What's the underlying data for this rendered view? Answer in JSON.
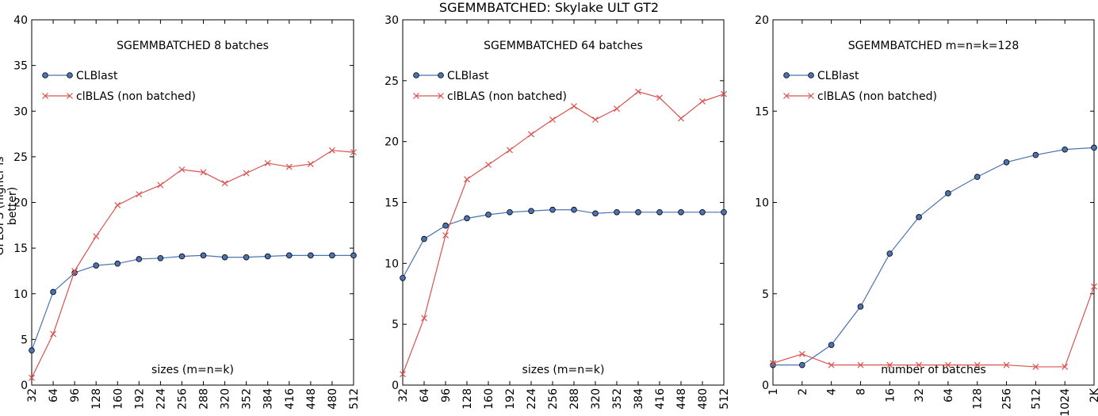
{
  "suptitle": "SGEMMBATCHED: Skylake ULT GT2",
  "ylabel": "GFLOPS (higher is better)",
  "colors": {
    "clblast": "#4c72b0",
    "clblas": "#d9534f"
  },
  "chart_data": [
    {
      "type": "line",
      "title": "SGEMMBATCHED 8 batches",
      "xlabel": "sizes (m=n=k)",
      "ylabel": "GFLOPS (higher is better)",
      "categories": [
        "32",
        "64",
        "96",
        "128",
        "160",
        "192",
        "224",
        "256",
        "288",
        "320",
        "352",
        "384",
        "416",
        "448",
        "480",
        "512"
      ],
      "ylim": [
        0,
        40
      ],
      "yticks": [
        0,
        5,
        10,
        15,
        20,
        25,
        30,
        35,
        40
      ],
      "legend": "upper-left",
      "series": [
        {
          "name": "CLBlast",
          "marker": "circle",
          "values": [
            3.8,
            10.2,
            12.3,
            13.1,
            13.3,
            13.8,
            13.9,
            14.1,
            14.2,
            14.0,
            14.0,
            14.1,
            14.2,
            14.2,
            14.2,
            14.2
          ]
        },
        {
          "name": "clBLAS (non batched)",
          "marker": "x",
          "values": [
            0.8,
            5.6,
            12.5,
            16.3,
            19.7,
            20.9,
            21.9,
            23.6,
            23.3,
            22.1,
            23.2,
            24.3,
            23.9,
            24.2,
            25.7,
            25.5
          ]
        }
      ]
    },
    {
      "type": "line",
      "title": "SGEMMBATCHED 64 batches",
      "xlabel": "sizes (m=n=k)",
      "ylabel": "",
      "categories": [
        "32",
        "64",
        "96",
        "128",
        "160",
        "192",
        "224",
        "256",
        "288",
        "320",
        "352",
        "384",
        "416",
        "448",
        "480",
        "512"
      ],
      "ylim": [
        0,
        30
      ],
      "yticks": [
        0,
        5,
        10,
        15,
        20,
        25,
        30
      ],
      "legend": "upper-left",
      "series": [
        {
          "name": "CLBlast",
          "marker": "circle",
          "values": [
            8.8,
            12.0,
            13.1,
            13.7,
            14.0,
            14.2,
            14.3,
            14.4,
            14.4,
            14.1,
            14.2,
            14.2,
            14.2,
            14.2,
            14.2,
            14.2
          ]
        },
        {
          "name": "clBLAS (non batched)",
          "marker": "x",
          "values": [
            0.9,
            5.5,
            12.3,
            16.9,
            18.1,
            19.3,
            20.6,
            21.8,
            22.9,
            21.8,
            22.7,
            24.1,
            23.6,
            21.9,
            23.3,
            23.9
          ]
        }
      ]
    },
    {
      "type": "line",
      "title": "SGEMMBATCHED m=n=k=128",
      "xlabel": "number of batches",
      "ylabel": "",
      "categories": [
        "1",
        "2",
        "4",
        "8",
        "16",
        "32",
        "64",
        "128",
        "256",
        "512",
        "1024",
        "2K"
      ],
      "ylim": [
        0,
        20
      ],
      "yticks": [
        0,
        5,
        10,
        15,
        20
      ],
      "legend": "upper-left",
      "series": [
        {
          "name": "CLBlast",
          "marker": "circle",
          "values": [
            1.1,
            1.1,
            2.2,
            4.3,
            7.2,
            9.2,
            10.5,
            11.4,
            12.2,
            12.6,
            12.9,
            13.0
          ]
        },
        {
          "name": "clBLAS (non batched)",
          "marker": "x",
          "values": [
            1.2,
            1.7,
            1.1,
            1.1,
            1.1,
            1.1,
            1.1,
            1.1,
            1.1,
            1.0,
            1.0,
            5.4
          ]
        }
      ]
    }
  ]
}
